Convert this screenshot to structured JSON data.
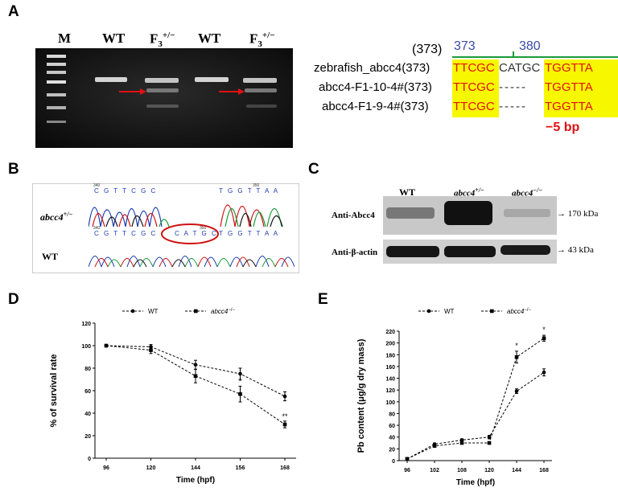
{
  "panels": {
    "A": {
      "label": "A",
      "gel": {
        "lanes": [
          "M",
          "WT",
          "F",
          "WT",
          "F"
        ],
        "f3_sup": "+/−",
        "f3_sub": "3"
      },
      "alignment": {
        "header_label": "(373)",
        "pos1": "373",
        "pos2": "380",
        "rows": [
          {
            "name": "zebrafish_abcc4(373)",
            "seq_left": "TTCGC",
            "seq_mid": "CATGC",
            "seq_right": "TGGTTA"
          },
          {
            "name": "abcc4-F1-10-4#(373)",
            "seq_left": "TTCGC",
            "seq_mid": "-----",
            "seq_right": "TGGTTA"
          },
          {
            "name": "abcc4-F1-9-4#(373)",
            "seq_left": "TTCGC",
            "seq_mid": "-----",
            "seq_right": "TGGTTA"
          }
        ],
        "deletion": "−5 bp"
      }
    },
    "B": {
      "label": "B",
      "row1_label": "abcc4",
      "row1_sup": "+/−",
      "row2_label": "WT",
      "top_seq_left": "C G T T C G C",
      "top_seq_right": "T G G T T A A",
      "bottom_seq_left": "C G T T C G C",
      "bottom_seq_mid": "C A T G C",
      "bottom_seq_right": "T G G T T A A",
      "num_340a": "340",
      "num_350a": "350",
      "num_340b": "340",
      "num_350b": "350"
    },
    "C": {
      "label": "C",
      "cols": [
        "WT",
        "abcc4",
        "abcc4"
      ],
      "col_sups": [
        "",
        "+/−",
        "−/−"
      ],
      "row1_label": "Anti-Abcc4",
      "row2_label": "Anti-β-actin",
      "row1_size": "170 kDa",
      "row2_size": "43 kDa"
    },
    "D": {
      "label": "D"
    },
    "E": {
      "label": "E"
    }
  },
  "chart_data": [
    {
      "type": "line",
      "panel": "D",
      "xlabel": "Time (hpf)",
      "ylabel": "% of survival rate",
      "x": [
        "96",
        "120",
        "144",
        "156",
        "168"
      ],
      "ylim": [
        0,
        120
      ],
      "yticks": [
        0,
        20,
        40,
        60,
        80,
        100,
        120
      ],
      "legend": "top",
      "series": [
        {
          "name": "WT",
          "marker": "circle",
          "values": [
            100,
            99,
            83,
            75,
            55
          ],
          "err": [
            1,
            2,
            4,
            5,
            4
          ]
        },
        {
          "name": "abcc4",
          "name_sup": "−/−",
          "marker": "square",
          "values": [
            100,
            96,
            73,
            57,
            30
          ],
          "err": [
            1,
            3,
            6,
            7,
            3
          ]
        }
      ],
      "annotations": [
        {
          "x": "156",
          "text": "*"
        },
        {
          "x": "168",
          "text": "**"
        }
      ]
    },
    {
      "type": "line",
      "panel": "E",
      "xlabel": "Time (hpf)",
      "ylabel": "Pb content (μg/g dry mass)",
      "x": [
        "96",
        "102",
        "108",
        "120",
        "144",
        "168"
      ],
      "ylim": [
        0,
        220
      ],
      "yticks": [
        0,
        20,
        40,
        60,
        80,
        100,
        120,
        140,
        160,
        180,
        200,
        220
      ],
      "legend": "top",
      "series": [
        {
          "name": "WT",
          "marker": "circle",
          "values": [
            3,
            28,
            35,
            40,
            118,
            150
          ],
          "err": [
            1,
            2,
            2,
            3,
            4,
            6
          ]
        },
        {
          "name": "abcc4",
          "name_sup": "−/−",
          "marker": "square",
          "values": [
            3,
            25,
            30,
            30,
            176,
            208
          ],
          "err": [
            1,
            2,
            2,
            2,
            10,
            5
          ]
        }
      ],
      "annotations": [
        {
          "x": "144",
          "text": "*"
        },
        {
          "x": "168",
          "text": "*"
        }
      ]
    }
  ]
}
